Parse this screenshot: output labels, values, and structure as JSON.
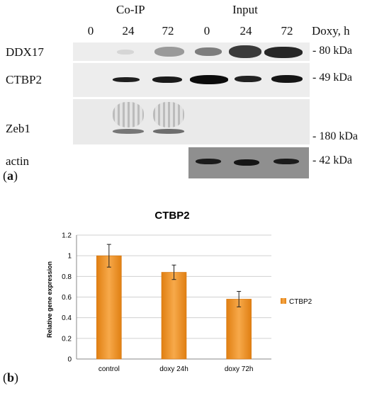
{
  "panel_a": {
    "panel_label": "a",
    "group_headers": [
      "Co-IP",
      "Input"
    ],
    "lanes": [
      "0",
      "24",
      "72",
      "0",
      "24",
      "72"
    ],
    "time_axis_label": "Doxy, h",
    "rows": [
      {
        "label": "DDX17",
        "marker": "80 kDa"
      },
      {
        "label": "CTBP2",
        "marker": "49 kDa"
      },
      {
        "label": "Zeb1",
        "marker": "180 kDa"
      },
      {
        "label": "actin",
        "marker": "42 kDa"
      }
    ]
  },
  "panel_b": {
    "panel_label": "b",
    "chart_data": {
      "type": "bar",
      "title": "CTBP2",
      "ylabel": "Relative gene expression",
      "xlabel": "",
      "categories": [
        "control",
        "doxy 24h",
        "doxy 72h"
      ],
      "series": [
        {
          "name": "CTBP2",
          "values": [
            1.0,
            0.84,
            0.58
          ],
          "errors": [
            0.11,
            0.07,
            0.075
          ]
        }
      ],
      "ylim": [
        0,
        1.2
      ],
      "yticks": [
        0,
        0.2,
        0.4,
        0.6,
        0.8,
        1,
        1.2
      ],
      "grid": true,
      "legend": "right",
      "bar_color": "#f39a2e"
    }
  }
}
